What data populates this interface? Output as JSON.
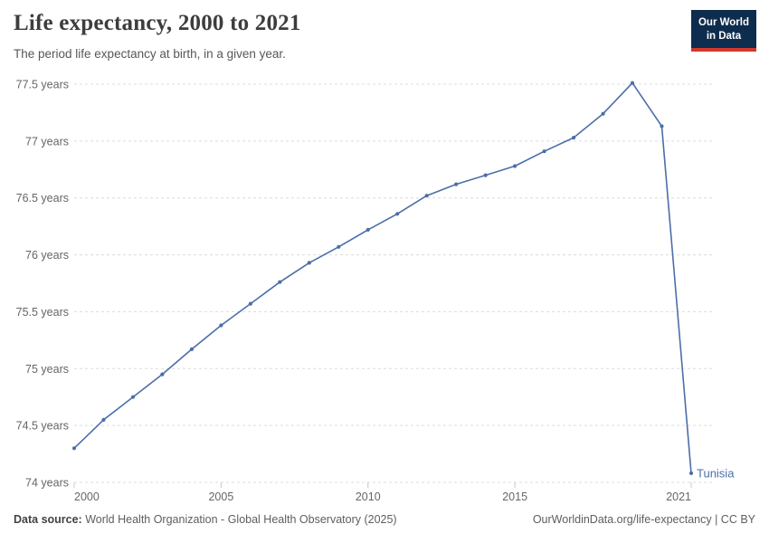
{
  "header": {
    "title": "Life expectancy, 2000 to 2021",
    "subtitle": "The period life expectancy at birth, in a given year.",
    "logo": {
      "line1": "Our World",
      "line2": "in Data"
    }
  },
  "chart_data": {
    "type": "line",
    "title": "Life expectancy, 2000 to 2021",
    "entity": "Tunisia",
    "unit": "years",
    "x": [
      2000,
      2001,
      2002,
      2003,
      2004,
      2005,
      2006,
      2007,
      2008,
      2009,
      2010,
      2011,
      2012,
      2013,
      2014,
      2015,
      2016,
      2017,
      2018,
      2019,
      2020,
      2021
    ],
    "values": [
      74.3,
      74.55,
      74.75,
      74.95,
      75.17,
      75.38,
      75.57,
      75.76,
      75.93,
      76.07,
      76.22,
      76.36,
      76.52,
      76.62,
      76.7,
      76.78,
      76.91,
      77.03,
      77.24,
      77.51,
      77.13,
      74.08
    ],
    "xlabel": "",
    "ylabel": "",
    "ylim": [
      74,
      77.5
    ],
    "xlim": [
      2000,
      2021
    ],
    "y_ticks": [
      74,
      74.5,
      75,
      75.5,
      76,
      76.5,
      77,
      77.5
    ],
    "y_tick_suffix": "years",
    "x_ticks": [
      2000,
      2005,
      2010,
      2015,
      2021
    ],
    "grid": true,
    "legend_position": "end-of-line-label",
    "line_color": "#4C6EA8"
  },
  "colors": {
    "line": "#4C6EA8",
    "grid": "#dcdcdc",
    "tick": "#c8c8c8",
    "axis_text": "#666666",
    "logo_bg": "#0e2d4e",
    "logo_red": "#d2382c"
  },
  "footer": {
    "source_label": "Data source:",
    "source_text": "World Health Organization - Global Health Observatory (2025)",
    "link_text": "OurWorldinData.org/life-expectancy | CC BY"
  }
}
